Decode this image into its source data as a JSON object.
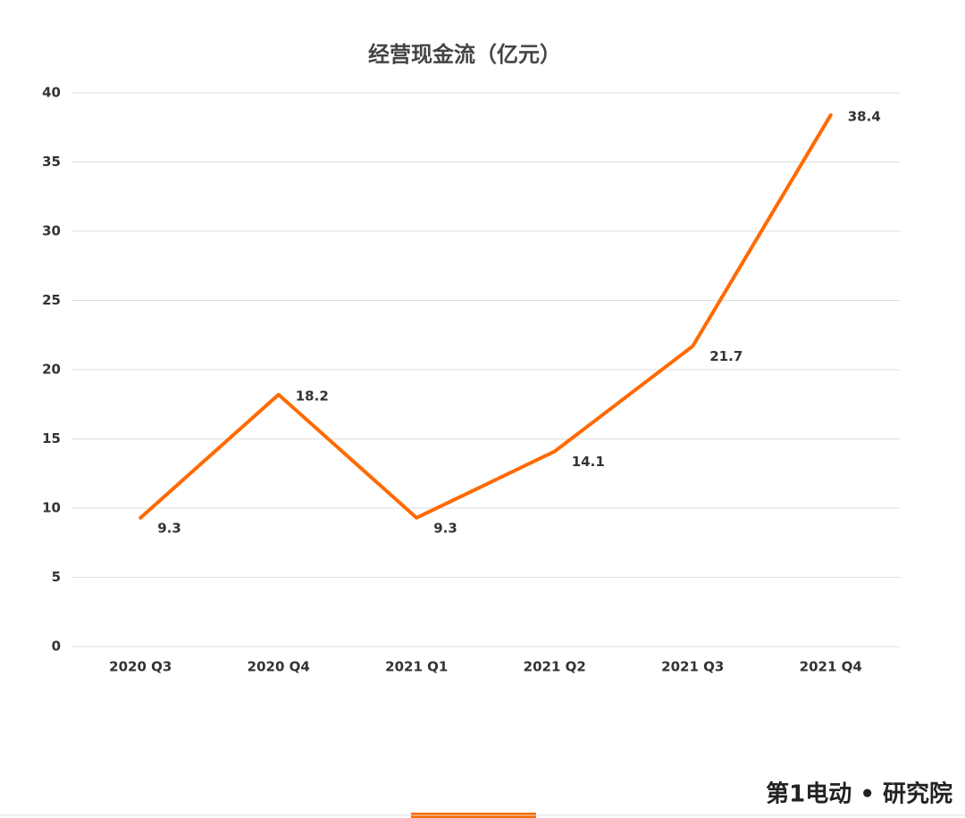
{
  "chart_data": {
    "type": "line",
    "title": "经营现金流（亿元）",
    "categories": [
      "2020 Q3",
      "2020 Q4",
      "2021 Q1",
      "2021 Q2",
      "2021 Q3",
      "2021 Q4"
    ],
    "series": [
      {
        "color": "#ff6a00",
        "values": [
          9.3,
          18.2,
          9.3,
          14.1,
          21.7,
          38.4
        ]
      }
    ],
    "ylim": [
      0,
      40
    ],
    "yticks": [
      0,
      5,
      10,
      15,
      20,
      25,
      30,
      35,
      40
    ],
    "grid": true
  },
  "footer": "第1电动 • 研究院"
}
